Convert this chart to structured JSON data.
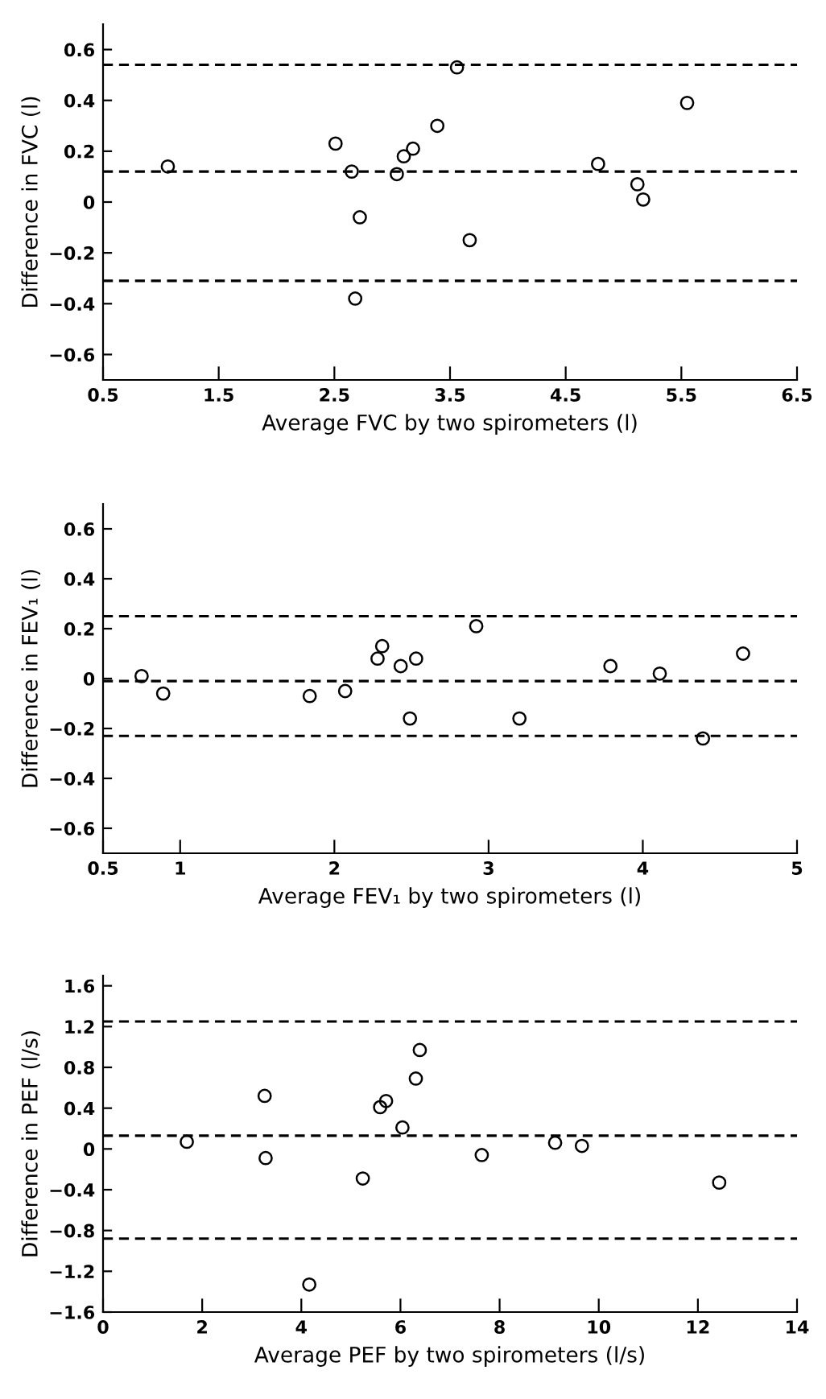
{
  "chart_data": [
    {
      "type": "scatter",
      "xlabel": "Average FVC by two spirometers (l)",
      "ylabel": "Difference in FVC (l)",
      "marker": "circle",
      "grid": false,
      "legend": false,
      "x": [
        1.06,
        2.51,
        2.65,
        2.68,
        2.72,
        3.04,
        3.1,
        3.18,
        3.39,
        3.56,
        3.67,
        4.78,
        5.12,
        5.17,
        5.55
      ],
      "values": [
        0.14,
        0.23,
        0.12,
        -0.38,
        -0.06,
        0.11,
        0.18,
        0.21,
        0.3,
        0.53,
        -0.15,
        0.15,
        0.07,
        0.01,
        0.39
      ],
      "color": "#000000",
      "xlim": [
        0.5,
        6.5
      ],
      "xticks": [
        0.5,
        1.5,
        2.5,
        3.5,
        4.5,
        5.5,
        6.5
      ],
      "ylim": [
        -0.7,
        0.7
      ],
      "yticks": [
        {
          "value": -0.6,
          "label": "−0.6"
        },
        {
          "value": -0.4,
          "label": "−0.4"
        },
        {
          "value": -0.2,
          "label": "−0.2"
        },
        0,
        0.2,
        0.4,
        0.6
      ],
      "ref_lines": [
        {
          "axis": "y",
          "value": 0.54,
          "line_style": "dashed",
          "color": "#000000"
        },
        {
          "axis": "y",
          "value": 0.12,
          "line_style": "dashed",
          "color": "#000000"
        },
        {
          "axis": "y",
          "value": -0.31,
          "line_style": "dashed",
          "color": "#000000"
        }
      ]
    },
    {
      "type": "scatter",
      "xlabel": "Average FEV₁ by two spirometers (l)",
      "ylabel": "Difference in FEV₁ (l)",
      "marker": "circle",
      "grid": false,
      "legend": false,
      "x": [
        0.75,
        0.89,
        1.84,
        2.07,
        2.28,
        2.31,
        2.43,
        2.53,
        2.49,
        2.92,
        3.2,
        3.79,
        4.11,
        4.39,
        4.65
      ],
      "values": [
        0.01,
        -0.06,
        -0.07,
        -0.05,
        0.08,
        0.13,
        0.05,
        0.08,
        -0.16,
        0.21,
        -0.16,
        0.05,
        0.02,
        -0.24,
        0.1
      ],
      "color": "#000000",
      "xlim": [
        0.5,
        5
      ],
      "xticks": [
        0.5,
        1,
        2,
        3,
        4,
        5
      ],
      "ylim": [
        -0.7,
        0.7
      ],
      "yticks": [
        {
          "value": -0.6,
          "label": "−0.6"
        },
        {
          "value": -0.4,
          "label": "−0.4"
        },
        {
          "value": -0.2,
          "label": "−0.2"
        },
        0,
        0.2,
        0.4,
        0.6
      ],
      "ref_lines": [
        {
          "axis": "y",
          "value": 0.25,
          "line_style": "dashed",
          "color": "#000000"
        },
        {
          "axis": "y",
          "value": -0.01,
          "line_style": "dashed",
          "color": "#000000"
        },
        {
          "axis": "y",
          "value": -0.23,
          "line_style": "dashed",
          "color": "#000000"
        }
      ]
    },
    {
      "type": "scatter",
      "xlabel": "Average PEF by two spirometers (l/s)",
      "ylabel": "Difference in PEF (l/s)",
      "marker": "circle",
      "grid": false,
      "legend": false,
      "x": [
        1.69,
        3.26,
        3.28,
        4.16,
        5.24,
        5.59,
        5.71,
        6.04,
        6.31,
        6.39,
        7.64,
        9.12,
        9.66,
        12.43
      ],
      "values": [
        0.07,
        0.52,
        -0.09,
        -1.33,
        -0.29,
        0.41,
        0.47,
        0.21,
        0.69,
        0.97,
        -0.06,
        0.06,
        0.03,
        -0.33
      ],
      "color": "#000000",
      "xlim": [
        0,
        14
      ],
      "xticks": [
        0,
        2,
        4,
        6,
        8,
        10,
        12,
        14
      ],
      "ylim": [
        -1.6,
        1.7
      ],
      "yticks": [
        {
          "value": -1.6,
          "label": "−1.6"
        },
        {
          "value": -1.2,
          "label": "−1.2"
        },
        {
          "value": -0.8,
          "label": "−0.8"
        },
        {
          "value": -0.4,
          "label": "−0.4"
        },
        0,
        0.4,
        0.8,
        1.2,
        1.6
      ],
      "ref_lines": [
        {
          "axis": "y",
          "value": 1.25,
          "line_style": "dashed",
          "color": "#000000"
        },
        {
          "axis": "y",
          "value": 0.13,
          "line_style": "dashed",
          "color": "#000000"
        },
        {
          "axis": "y",
          "value": -0.88,
          "line_style": "dashed",
          "color": "#000000"
        }
      ]
    }
  ]
}
